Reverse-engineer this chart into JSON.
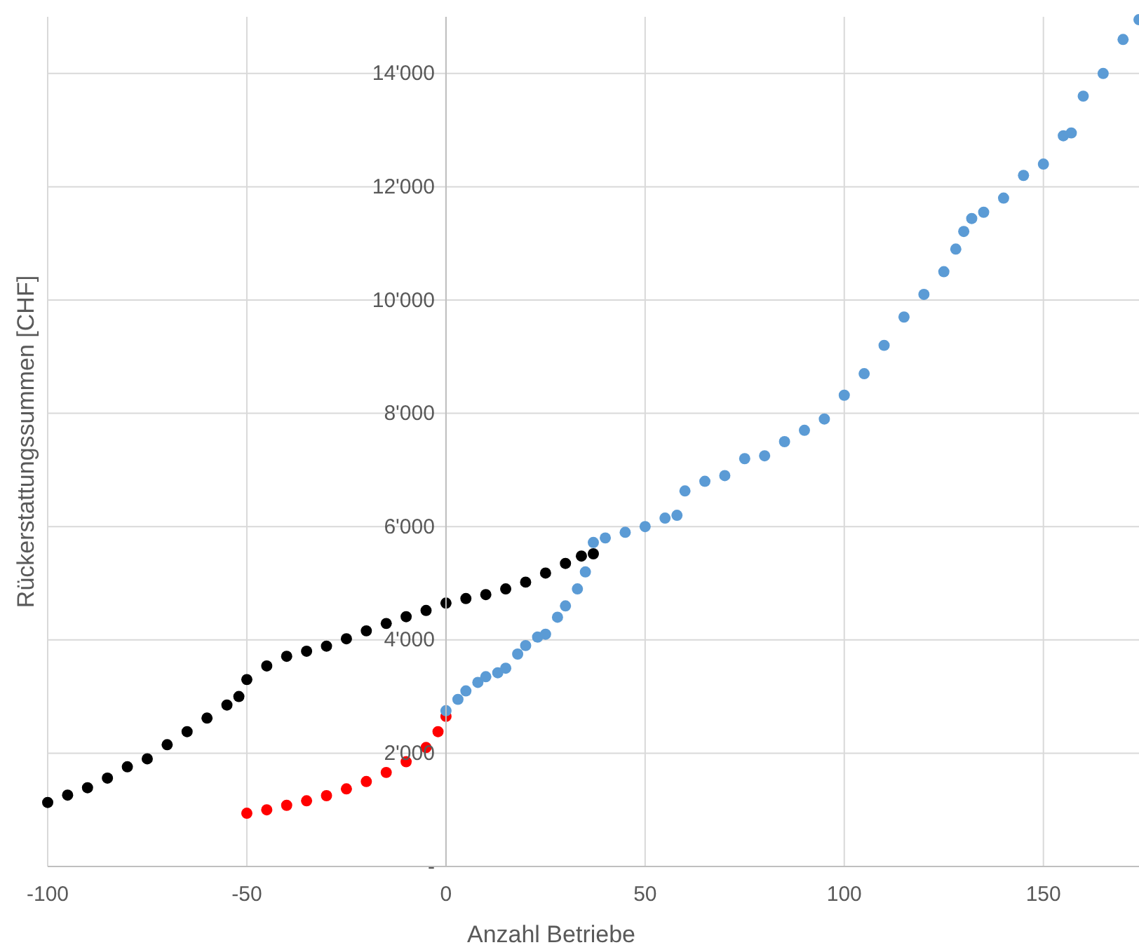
{
  "chart_data": {
    "type": "scatter",
    "xlabel": "Anzahl Betriebe",
    "ylabel": "Rückerstattungssummen [CHF]",
    "xlim": [
      -100,
      174
    ],
    "xticks": [
      -100,
      -50,
      0,
      50,
      100,
      150
    ],
    "ylim": [
      0,
      15000
    ],
    "yticks": [
      {
        "value": 0,
        "label": "-"
      },
      {
        "value": 2000,
        "label": "2'000"
      },
      {
        "value": 4000,
        "label": "4'000"
      },
      {
        "value": 6000,
        "label": "6'000"
      },
      {
        "value": 8000,
        "label": "8'000"
      },
      {
        "value": 10000,
        "label": "10'000"
      },
      {
        "value": 12000,
        "label": "12'000"
      },
      {
        "value": 14000,
        "label": "14'000"
      }
    ],
    "grid": true,
    "marker": "circle",
    "series": [
      {
        "color": "#000000",
        "x": [
          -100,
          -95,
          -90,
          -85,
          -80,
          -75,
          -70,
          -65,
          -60,
          -55,
          -52,
          -50,
          -45,
          -40,
          -35,
          -30,
          -25,
          -20,
          -15,
          -10,
          -5,
          0,
          5,
          10,
          15,
          20,
          25,
          30,
          34,
          37
        ],
        "values": [
          1130,
          1260,
          1390,
          1560,
          1760,
          1900,
          2150,
          2380,
          2620,
          2850,
          3000,
          3300,
          3540,
          3710,
          3800,
          3890,
          4020,
          4160,
          4290,
          4410,
          4520,
          4650,
          4730,
          4800,
          4900,
          5020,
          5180,
          5350,
          5480,
          5520
        ]
      },
      {
        "color": "#ff0000",
        "x": [
          -50,
          -45,
          -40,
          -35,
          -30,
          -25,
          -20,
          -15,
          -10,
          -5,
          -2,
          0
        ],
        "values": [
          940,
          1000,
          1080,
          1160,
          1250,
          1370,
          1500,
          1660,
          1850,
          2100,
          2380,
          2650
        ]
      },
      {
        "color": "#5b9bd5",
        "x": [
          0,
          3,
          5,
          8,
          10,
          13,
          15,
          18,
          20,
          23,
          25,
          28,
          30,
          33,
          35,
          37,
          40,
          45,
          50,
          55,
          58,
          60,
          65,
          70,
          75,
          80,
          85,
          90,
          95,
          100,
          105,
          110,
          115,
          120,
          125,
          128,
          130,
          132,
          135,
          140,
          145,
          150,
          155,
          157,
          160,
          165,
          170,
          174
        ],
        "values": [
          2750,
          2950,
          3100,
          3250,
          3350,
          3420,
          3500,
          3750,
          3900,
          4050,
          4100,
          4400,
          4600,
          4900,
          5200,
          5720,
          5800,
          5900,
          6000,
          6150,
          6200,
          6630,
          6800,
          6900,
          7200,
          7250,
          7500,
          7700,
          7900,
          8320,
          8700,
          9200,
          9700,
          10100,
          10500,
          10900,
          11210,
          11440,
          11550,
          11800,
          12200,
          12400,
          12900,
          12950,
          13600,
          14000,
          14600,
          14950
        ]
      }
    ]
  }
}
